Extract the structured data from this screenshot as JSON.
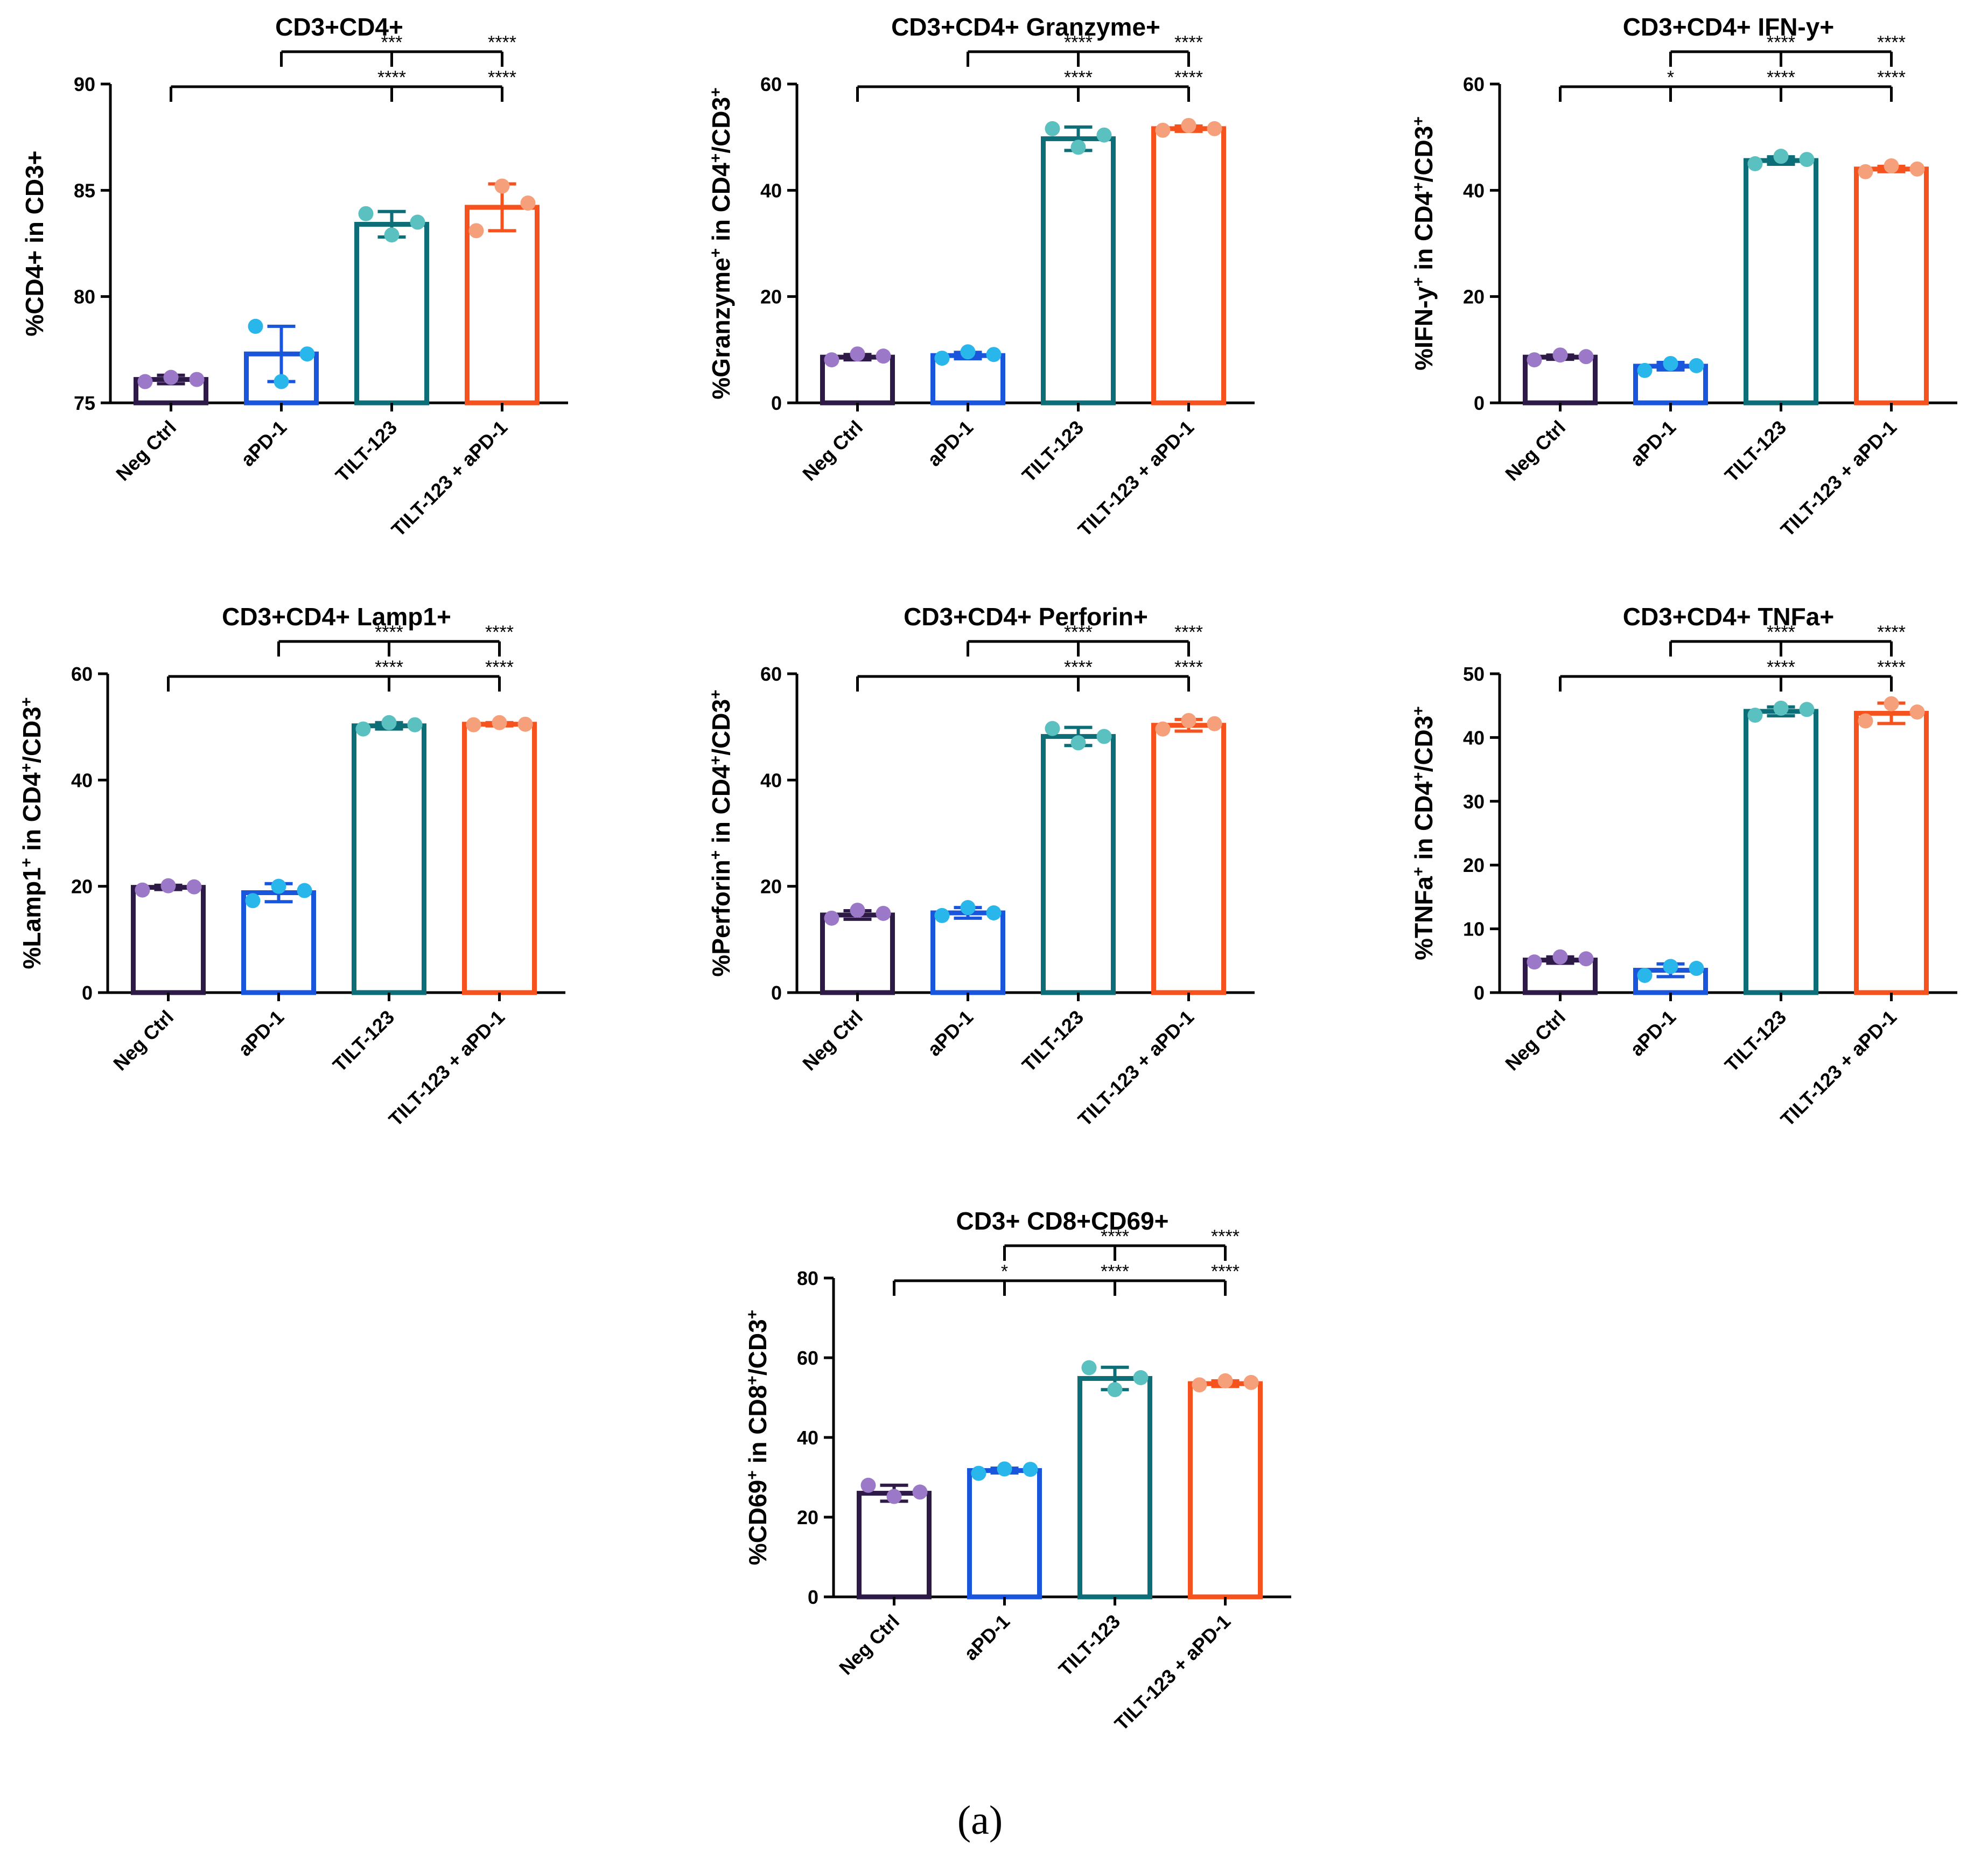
{
  "categories": [
    "Neg Ctrl",
    "aPD-1",
    "TILT-123",
    "TILT-123 + aPD-1"
  ],
  "colors": {
    "bars": [
      "#2e1a47",
      "#1a56db",
      "#0d6e78",
      "#f5521e"
    ],
    "points": [
      "#9b78c8",
      "#29b6ea",
      "#5bc0c0",
      "#f5a07a"
    ]
  },
  "caption": "(a)",
  "chart_data": [
    {
      "type": "bar",
      "title": "CD3+CD4+",
      "ylabel": [
        {
          "t": "%CD4+ in CD3+"
        }
      ],
      "ylim": [
        75,
        90
      ],
      "yticks": [
        75,
        80,
        85,
        90
      ],
      "categories": [
        "Neg Ctrl",
        "aPD-1",
        "TILT-123",
        "TILT-123 + aPD-1"
      ],
      "values": [
        76.1,
        77.3,
        83.4,
        84.2
      ],
      "errors": [
        0.2,
        1.3,
        0.6,
        1.1
      ],
      "points": [
        [
          76.0,
          76.2,
          76.1
        ],
        [
          78.6,
          76.0,
          77.3
        ],
        [
          83.9,
          82.9,
          83.5
        ],
        [
          83.1,
          85.2,
          84.4
        ]
      ],
      "significance": [
        {
          "from": 1,
          "to": [
            2,
            3
          ],
          "labels": [
            "***",
            "****"
          ]
        },
        {
          "from": 0,
          "to": [
            2,
            3
          ],
          "labels": [
            "****",
            "****"
          ]
        }
      ]
    },
    {
      "type": "bar",
      "title": "CD3+CD4+ Granzyme+",
      "ylabel": [
        {
          "t": "%Granzyme"
        },
        {
          "t": "+",
          "sup": true
        },
        {
          "t": " in  CD4"
        },
        {
          "t": "+",
          "sup": true
        },
        {
          "t": "/CD3"
        },
        {
          "t": "+",
          "sup": true
        }
      ],
      "ylim": [
        0,
        60
      ],
      "yticks": [
        0,
        20,
        40,
        60
      ],
      "categories": [
        "Neg Ctrl",
        "aPD-1",
        "TILT-123",
        "TILT-123 + aPD-1"
      ],
      "values": [
        8.6,
        8.9,
        49.7,
        51.6
      ],
      "errors": [
        0.5,
        0.6,
        2.2,
        0.5
      ],
      "points": [
        [
          8.1,
          9.2,
          8.8
        ],
        [
          8.4,
          9.6,
          9.1
        ],
        [
          51.6,
          48.1,
          50.4
        ],
        [
          51.3,
          52.2,
          51.6
        ]
      ],
      "significance": [
        {
          "from": 1,
          "to": [
            2,
            3
          ],
          "labels": [
            "****",
            "****"
          ]
        },
        {
          "from": 0,
          "to": [
            2,
            3
          ],
          "labels": [
            "****",
            "****"
          ]
        }
      ]
    },
    {
      "type": "bar",
      "title": "CD3+CD4+ IFN-y+",
      "ylabel": [
        {
          "t": "%IFN-y"
        },
        {
          "t": "+",
          "sup": true
        },
        {
          "t": " in CD4"
        },
        {
          "t": "+",
          "sup": true
        },
        {
          "t": "/CD3"
        },
        {
          "t": "+",
          "sup": true
        }
      ],
      "ylim": [
        0,
        60
      ],
      "yticks": [
        0,
        20,
        40,
        60
      ],
      "categories": [
        "Neg Ctrl",
        "aPD-1",
        "TILT-123",
        "TILT-123 + aPD-1"
      ],
      "values": [
        8.6,
        6.9,
        45.6,
        44.0
      ],
      "errors": [
        0.4,
        0.7,
        0.7,
        0.5
      ],
      "points": [
        [
          8.1,
          9.0,
          8.7
        ],
        [
          6.1,
          7.4,
          7.0
        ],
        [
          45.0,
          46.4,
          45.8
        ],
        [
          43.5,
          44.6,
          44.0
        ]
      ],
      "significance": [
        {
          "from": 1,
          "to": [
            2,
            3
          ],
          "labels": [
            "****",
            "****"
          ]
        },
        {
          "from": 0,
          "to": [
            1,
            2,
            3
          ],
          "labels": [
            "*",
            "****",
            "****"
          ]
        }
      ]
    },
    {
      "type": "bar",
      "title": "CD3+CD4+ Lamp1+",
      "ylabel": [
        {
          "t": "%Lamp1"
        },
        {
          "t": "+",
          "sup": true
        },
        {
          "t": " in CD4"
        },
        {
          "t": "+",
          "sup": true
        },
        {
          "t": "/CD3"
        },
        {
          "t": "+",
          "sup": true
        }
      ],
      "ylim": [
        0,
        60
      ],
      "yticks": [
        0,
        20,
        40,
        60
      ],
      "categories": [
        "Neg Ctrl",
        "aPD-1",
        "TILT-123",
        "TILT-123 + aPD-1"
      ],
      "values": [
        19.8,
        18.8,
        50.2,
        50.5
      ],
      "errors": [
        0.4,
        1.7,
        0.6,
        0.3
      ],
      "points": [
        [
          19.3,
          20.1,
          19.9
        ],
        [
          17.3,
          20.0,
          19.2
        ],
        [
          49.6,
          50.8,
          50.4
        ],
        [
          50.4,
          50.8,
          50.5
        ]
      ],
      "significance": [
        {
          "from": 1,
          "to": [
            2,
            3
          ],
          "labels": [
            "****",
            "****"
          ]
        },
        {
          "from": 0,
          "to": [
            2,
            3
          ],
          "labels": [
            "****",
            "****"
          ]
        }
      ]
    },
    {
      "type": "bar",
      "title": "CD3+CD4+ Perforin+",
      "ylabel": [
        {
          "t": "%Perforin"
        },
        {
          "t": "+",
          "sup": true
        },
        {
          "t": " in  CD4"
        },
        {
          "t": "+",
          "sup": true
        },
        {
          "t": "/CD3"
        },
        {
          "t": "+",
          "sup": true
        }
      ],
      "ylim": [
        0,
        60
      ],
      "yticks": [
        0,
        20,
        40,
        60
      ],
      "categories": [
        "Neg Ctrl",
        "aPD-1",
        "TILT-123",
        "TILT-123 + aPD-1"
      ],
      "values": [
        14.6,
        15.0,
        48.2,
        50.3
      ],
      "errors": [
        0.8,
        1.0,
        1.7,
        1.1
      ],
      "points": [
        [
          14.0,
          15.5,
          14.9
        ],
        [
          14.5,
          16.0,
          15.0
        ],
        [
          49.7,
          47.0,
          48.2
        ],
        [
          49.6,
          51.2,
          50.6
        ]
      ],
      "significance": [
        {
          "from": 1,
          "to": [
            2,
            3
          ],
          "labels": [
            "****",
            "****"
          ]
        },
        {
          "from": 0,
          "to": [
            2,
            3
          ],
          "labels": [
            "****",
            "****"
          ]
        }
      ]
    },
    {
      "type": "bar",
      "title": "CD3+CD4+ TNFa+",
      "ylabel": [
        {
          "t": "%TNFa"
        },
        {
          "t": "+",
          "sup": true
        },
        {
          "t": " in  CD4"
        },
        {
          "t": "+",
          "sup": true
        },
        {
          "t": "/CD3"
        },
        {
          "t": "+",
          "sup": true
        }
      ],
      "ylim": [
        0,
        50
      ],
      "yticks": [
        0,
        10,
        20,
        30,
        40,
        50
      ],
      "categories": [
        "Neg Ctrl",
        "aPD-1",
        "TILT-123",
        "TILT-123 + aPD-1"
      ],
      "values": [
        5.1,
        3.5,
        44.1,
        43.8
      ],
      "errors": [
        0.5,
        1.0,
        0.7,
        1.6
      ],
      "points": [
        [
          4.8,
          5.6,
          5.3
        ],
        [
          2.7,
          4.1,
          3.8
        ],
        [
          43.5,
          44.6,
          44.4
        ],
        [
          42.6,
          45.3,
          44.0
        ]
      ],
      "significance": [
        {
          "from": 1,
          "to": [
            2,
            3
          ],
          "labels": [
            "****",
            "****"
          ]
        },
        {
          "from": 0,
          "to": [
            2,
            3
          ],
          "labels": [
            "****",
            "****"
          ]
        }
      ]
    },
    {
      "type": "bar",
      "title": "CD3+ CD8+CD69+",
      "ylabel": [
        {
          "t": "%CD69"
        },
        {
          "t": "+",
          "sup": true
        },
        {
          "t": " in CD8"
        },
        {
          "t": "+",
          "sup": true
        },
        {
          "t": "/CD3"
        },
        {
          "t": "+",
          "sup": true
        }
      ],
      "ylim": [
        0,
        80
      ],
      "yticks": [
        0,
        20,
        40,
        60,
        80
      ],
      "categories": [
        "Neg Ctrl",
        "aPD-1",
        "TILT-123",
        "TILT-123 + aPD-1"
      ],
      "values": [
        26.0,
        31.7,
        54.8,
        53.5
      ],
      "errors": [
        2.0,
        0.6,
        2.8,
        0.7
      ],
      "points": [
        [
          28.0,
          25.2,
          26.3
        ],
        [
          31.0,
          32.1,
          32.0
        ],
        [
          57.5,
          52.0,
          55.0
        ],
        [
          53.2,
          54.2,
          53.8
        ]
      ],
      "significance": [
        {
          "from": 1,
          "to": [
            2,
            3
          ],
          "labels": [
            "****",
            "****"
          ]
        },
        {
          "from": 0,
          "to": [
            1,
            2,
            3
          ],
          "labels": [
            "*",
            "****",
            "****"
          ]
        }
      ]
    }
  ]
}
